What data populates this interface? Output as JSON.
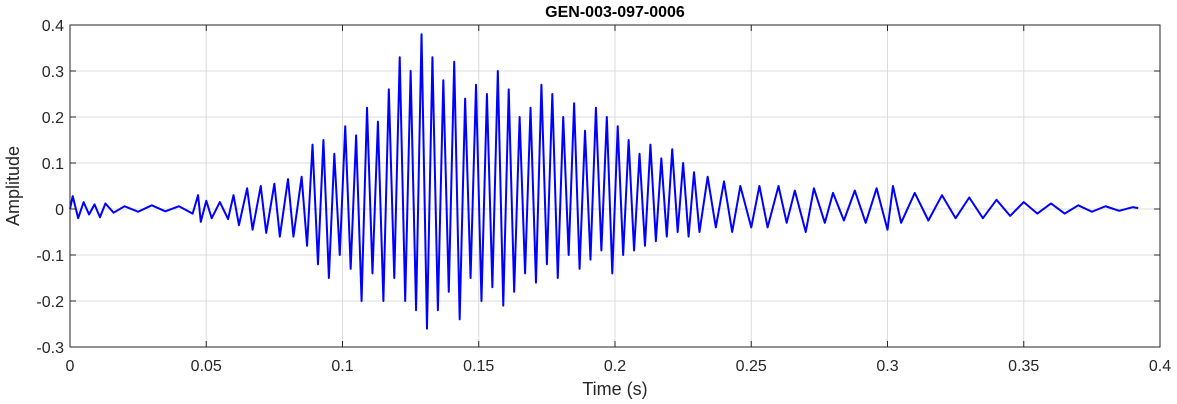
{
  "chart_data": {
    "type": "line",
    "title": "GEN-003-097-0006",
    "xlabel": "Time (s)",
    "ylabel": "Amplitude",
    "xlim": [
      0,
      0.4
    ],
    "ylim": [
      -0.3,
      0.4
    ],
    "xticks": [
      0,
      0.05,
      0.1,
      0.15,
      0.2,
      0.25,
      0.3,
      0.35,
      0.4
    ],
    "xtick_labels": [
      "0",
      "0.05",
      "0.1",
      "0.15",
      "0.2",
      "0.25",
      "0.3",
      "0.35",
      "0.4"
    ],
    "yticks": [
      -0.3,
      -0.2,
      -0.1,
      0,
      0.1,
      0.2,
      0.3,
      0.4
    ],
    "ytick_labels": [
      "-0.3",
      "-0.2",
      "-0.1",
      "0",
      "0.1",
      "0.2",
      "0.3",
      "0.4"
    ],
    "grid": true,
    "legend": "none",
    "series_color": "#0000ff",
    "series": [
      {
        "points": [
          [
            0.0,
            0.0
          ],
          [
            0.001,
            0.028
          ],
          [
            0.003,
            -0.02
          ],
          [
            0.005,
            0.015
          ],
          [
            0.007,
            -0.012
          ],
          [
            0.009,
            0.01
          ],
          [
            0.011,
            -0.018
          ],
          [
            0.013,
            0.012
          ],
          [
            0.016,
            -0.008
          ],
          [
            0.02,
            0.006
          ],
          [
            0.025,
            -0.006
          ],
          [
            0.03,
            0.008
          ],
          [
            0.035,
            -0.005
          ],
          [
            0.04,
            0.006
          ],
          [
            0.045,
            -0.01
          ],
          [
            0.047,
            0.03
          ],
          [
            0.048,
            -0.028
          ],
          [
            0.05,
            0.018
          ],
          [
            0.052,
            -0.02
          ],
          [
            0.055,
            0.015
          ],
          [
            0.058,
            -0.022
          ],
          [
            0.06,
            0.03
          ],
          [
            0.062,
            -0.035
          ],
          [
            0.065,
            0.045
          ],
          [
            0.067,
            -0.045
          ],
          [
            0.07,
            0.05
          ],
          [
            0.072,
            -0.052
          ],
          [
            0.075,
            0.055
          ],
          [
            0.077,
            -0.06
          ],
          [
            0.08,
            0.065
          ],
          [
            0.082,
            -0.06
          ],
          [
            0.085,
            0.07
          ],
          [
            0.087,
            -0.08
          ],
          [
            0.089,
            0.14
          ],
          [
            0.091,
            -0.12
          ],
          [
            0.093,
            0.15
          ],
          [
            0.095,
            -0.15
          ],
          [
            0.097,
            0.12
          ],
          [
            0.099,
            -0.1
          ],
          [
            0.101,
            0.18
          ],
          [
            0.103,
            -0.13
          ],
          [
            0.105,
            0.16
          ],
          [
            0.107,
            -0.2
          ],
          [
            0.109,
            0.22
          ],
          [
            0.111,
            -0.14
          ],
          [
            0.113,
            0.19
          ],
          [
            0.115,
            -0.2
          ],
          [
            0.117,
            0.26
          ],
          [
            0.119,
            -0.15
          ],
          [
            0.121,
            0.33
          ],
          [
            0.123,
            -0.2
          ],
          [
            0.125,
            0.3
          ],
          [
            0.127,
            -0.22
          ],
          [
            0.129,
            0.38
          ],
          [
            0.131,
            -0.26
          ],
          [
            0.133,
            0.33
          ],
          [
            0.135,
            -0.22
          ],
          [
            0.137,
            0.28
          ],
          [
            0.139,
            -0.18
          ],
          [
            0.141,
            0.32
          ],
          [
            0.143,
            -0.24
          ],
          [
            0.145,
            0.24
          ],
          [
            0.147,
            -0.15
          ],
          [
            0.149,
            0.27
          ],
          [
            0.151,
            -0.2
          ],
          [
            0.153,
            0.25
          ],
          [
            0.155,
            -0.17
          ],
          [
            0.157,
            0.3
          ],
          [
            0.159,
            -0.21
          ],
          [
            0.161,
            0.26
          ],
          [
            0.163,
            -0.18
          ],
          [
            0.165,
            0.2
          ],
          [
            0.167,
            -0.14
          ],
          [
            0.169,
            0.22
          ],
          [
            0.171,
            -0.16
          ],
          [
            0.173,
            0.27
          ],
          [
            0.175,
            -0.12
          ],
          [
            0.177,
            0.25
          ],
          [
            0.179,
            -0.15
          ],
          [
            0.181,
            0.2
          ],
          [
            0.183,
            -0.1
          ],
          [
            0.185,
            0.23
          ],
          [
            0.187,
            -0.13
          ],
          [
            0.189,
            0.17
          ],
          [
            0.191,
            -0.11
          ],
          [
            0.193,
            0.22
          ],
          [
            0.195,
            -0.09
          ],
          [
            0.197,
            0.2
          ],
          [
            0.199,
            -0.14
          ],
          [
            0.201,
            0.18
          ],
          [
            0.203,
            -0.1
          ],
          [
            0.205,
            0.15
          ],
          [
            0.207,
            -0.09
          ],
          [
            0.209,
            0.12
          ],
          [
            0.211,
            -0.08
          ],
          [
            0.213,
            0.14
          ],
          [
            0.215,
            -0.07
          ],
          [
            0.217,
            0.11
          ],
          [
            0.219,
            -0.06
          ],
          [
            0.221,
            0.13
          ],
          [
            0.223,
            -0.05
          ],
          [
            0.225,
            0.1
          ],
          [
            0.227,
            -0.06
          ],
          [
            0.229,
            0.08
          ],
          [
            0.231,
            -0.05
          ],
          [
            0.234,
            0.07
          ],
          [
            0.237,
            -0.04
          ],
          [
            0.24,
            0.06
          ],
          [
            0.243,
            -0.05
          ],
          [
            0.246,
            0.05
          ],
          [
            0.25,
            -0.04
          ],
          [
            0.253,
            0.05
          ],
          [
            0.256,
            -0.04
          ],
          [
            0.26,
            0.05
          ],
          [
            0.263,
            -0.03
          ],
          [
            0.266,
            0.04
          ],
          [
            0.27,
            -0.05
          ],
          [
            0.273,
            0.045
          ],
          [
            0.277,
            -0.03
          ],
          [
            0.28,
            0.035
          ],
          [
            0.284,
            -0.025
          ],
          [
            0.288,
            0.04
          ],
          [
            0.292,
            -0.03
          ],
          [
            0.296,
            0.045
          ],
          [
            0.3,
            -0.045
          ],
          [
            0.302,
            0.05
          ],
          [
            0.305,
            -0.03
          ],
          [
            0.31,
            0.035
          ],
          [
            0.315,
            -0.025
          ],
          [
            0.32,
            0.03
          ],
          [
            0.325,
            -0.02
          ],
          [
            0.33,
            0.025
          ],
          [
            0.335,
            -0.02
          ],
          [
            0.34,
            0.02
          ],
          [
            0.345,
            -0.015
          ],
          [
            0.35,
            0.015
          ],
          [
            0.355,
            -0.01
          ],
          [
            0.36,
            0.012
          ],
          [
            0.365,
            -0.01
          ],
          [
            0.37,
            0.008
          ],
          [
            0.375,
            -0.006
          ],
          [
            0.38,
            0.006
          ],
          [
            0.385,
            -0.004
          ],
          [
            0.39,
            0.004
          ],
          [
            0.392,
            0.002
          ]
        ]
      }
    ]
  }
}
